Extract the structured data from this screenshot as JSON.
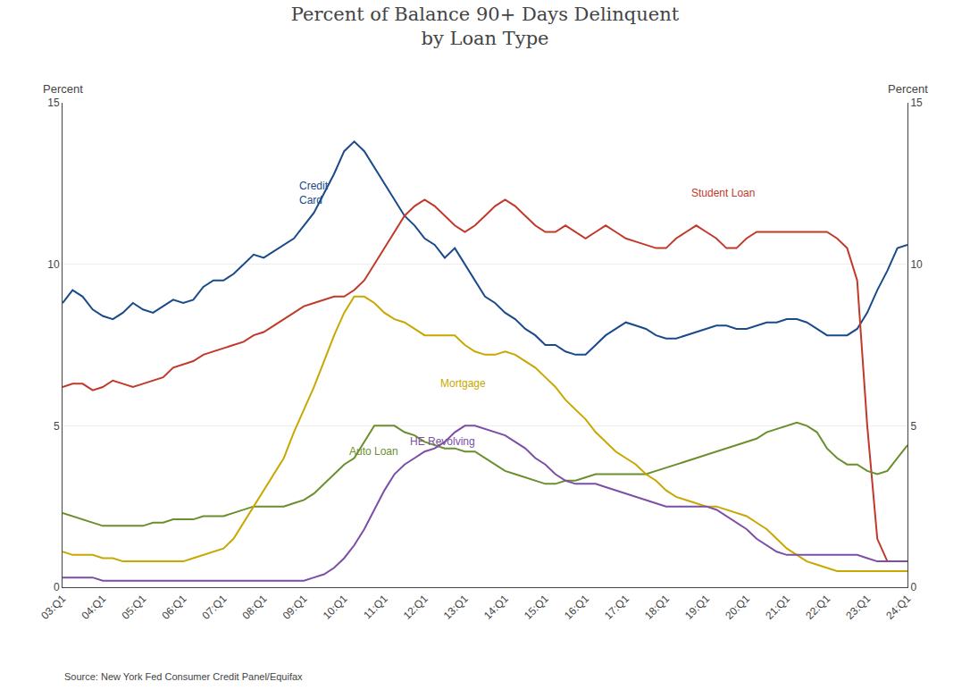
{
  "chart_data": {
    "type": "line",
    "title": "Percent of Balance 90+ Days Delinquent\nby Loan Type",
    "ylabel": "Percent",
    "y2label": "Percent",
    "source": "Source: New York Fed Consumer Credit Panel/Equifax",
    "grid": true,
    "ylim": [
      0,
      15
    ],
    "yticks": [
      0,
      5,
      10,
      15
    ],
    "y2lim": [
      0,
      15
    ],
    "y2ticks": [
      0,
      5,
      10,
      15
    ],
    "categories": [
      "03:Q1",
      null,
      null,
      null,
      "04:Q1",
      null,
      null,
      null,
      "05:Q1",
      null,
      null,
      null,
      "06:Q1",
      null,
      null,
      null,
      "07:Q1",
      null,
      null,
      null,
      "08:Q1",
      null,
      null,
      null,
      "09:Q1",
      null,
      null,
      null,
      "10:Q1",
      null,
      null,
      null,
      "11:Q1",
      null,
      null,
      null,
      "12:Q1",
      null,
      null,
      null,
      "13:Q1",
      null,
      null,
      null,
      "14:Q1",
      null,
      null,
      null,
      "15:Q1",
      null,
      null,
      null,
      "16:Q1",
      null,
      null,
      null,
      "17:Q1",
      null,
      null,
      null,
      "18:Q1",
      null,
      null,
      null,
      "19:Q1",
      null,
      null,
      null,
      "20:Q1",
      null,
      null,
      null,
      "21:Q1",
      null,
      null,
      null,
      "22:Q1",
      null,
      null,
      null,
      "23:Q1",
      null,
      null,
      null,
      "24:Q1"
    ],
    "series": [
      {
        "name": "Credit\nCard",
        "color": "#1a4a8a",
        "values": [
          8.8,
          9.2,
          9.0,
          8.6,
          8.4,
          8.3,
          8.5,
          8.8,
          8.6,
          8.5,
          8.7,
          8.9,
          8.8,
          8.9,
          9.3,
          9.5,
          9.5,
          9.7,
          10.0,
          10.3,
          10.2,
          10.4,
          10.6,
          10.8,
          11.2,
          11.6,
          12.2,
          12.8,
          13.5,
          13.8,
          13.5,
          13.0,
          12.5,
          12.0,
          11.5,
          11.2,
          10.8,
          10.6,
          10.2,
          10.5,
          10.0,
          9.5,
          9.0,
          8.8,
          8.5,
          8.3,
          8.0,
          7.8,
          7.5,
          7.5,
          7.3,
          7.2,
          7.2,
          7.5,
          7.8,
          8.0,
          8.2,
          8.1,
          8.0,
          7.8,
          7.7,
          7.7,
          7.8,
          7.9,
          8.0,
          8.1,
          8.1,
          8.0,
          8.0,
          8.1,
          8.2,
          8.2,
          8.3,
          8.3,
          8.2,
          8.0,
          7.8,
          7.8,
          7.8,
          8.0,
          8.5,
          9.2,
          9.8,
          10.5,
          10.6
        ]
      },
      {
        "name": "Student Loan",
        "color": "#c0392b",
        "values": [
          6.2,
          6.3,
          6.3,
          6.1,
          6.2,
          6.4,
          6.3,
          6.2,
          6.3,
          6.4,
          6.5,
          6.8,
          6.9,
          7.0,
          7.2,
          7.3,
          7.4,
          7.5,
          7.6,
          7.8,
          7.9,
          8.1,
          8.3,
          8.5,
          8.7,
          8.8,
          8.9,
          9.0,
          9.0,
          9.2,
          9.5,
          10.0,
          10.5,
          11.0,
          11.5,
          11.8,
          12.0,
          11.8,
          11.5,
          11.2,
          11.0,
          11.2,
          11.5,
          11.8,
          12.0,
          11.8,
          11.5,
          11.2,
          11.0,
          11.0,
          11.2,
          11.0,
          10.8,
          11.0,
          11.2,
          11.0,
          10.8,
          10.7,
          10.6,
          10.5,
          10.5,
          10.8,
          11.0,
          11.2,
          11.0,
          10.8,
          10.5,
          10.5,
          10.8,
          11.0,
          11.0,
          11.0,
          11.0,
          11.0,
          11.0,
          11.0,
          11.0,
          10.8,
          10.5,
          9.5,
          5.0,
          1.5,
          0.8,
          0.8,
          0.8
        ]
      },
      {
        "name": "Auto Loan",
        "color": "#6a8f2e",
        "values": [
          2.3,
          2.2,
          2.1,
          2.0,
          1.9,
          1.9,
          1.9,
          1.9,
          1.9,
          2.0,
          2.0,
          2.1,
          2.1,
          2.1,
          2.2,
          2.2,
          2.2,
          2.3,
          2.4,
          2.5,
          2.5,
          2.5,
          2.5,
          2.6,
          2.7,
          2.9,
          3.2,
          3.5,
          3.8,
          4.0,
          4.5,
          5.0,
          5.0,
          5.0,
          4.8,
          4.7,
          4.5,
          4.4,
          4.3,
          4.3,
          4.2,
          4.2,
          4.0,
          3.8,
          3.6,
          3.5,
          3.4,
          3.3,
          3.2,
          3.2,
          3.3,
          3.3,
          3.4,
          3.5,
          3.5,
          3.5,
          3.5,
          3.5,
          3.5,
          3.6,
          3.7,
          3.8,
          3.9,
          4.0,
          4.1,
          4.2,
          4.3,
          4.4,
          4.5,
          4.6,
          4.8,
          4.9,
          5.0,
          5.1,
          5.0,
          4.8,
          4.3,
          4.0,
          3.8,
          3.8,
          3.6,
          3.5,
          3.6,
          4.0,
          4.4
        ]
      },
      {
        "name": "Mortgage",
        "color": "#c8a800",
        "values": [
          1.1,
          1.0,
          1.0,
          1.0,
          0.9,
          0.9,
          0.8,
          0.8,
          0.8,
          0.8,
          0.8,
          0.8,
          0.8,
          0.9,
          1.0,
          1.1,
          1.2,
          1.5,
          2.0,
          2.5,
          3.0,
          3.5,
          4.0,
          4.8,
          5.5,
          6.2,
          7.0,
          7.8,
          8.5,
          9.0,
          9.0,
          8.8,
          8.5,
          8.3,
          8.2,
          8.0,
          7.8,
          7.8,
          7.8,
          7.8,
          7.5,
          7.3,
          7.2,
          7.2,
          7.3,
          7.2,
          7.0,
          6.8,
          6.5,
          6.2,
          5.8,
          5.5,
          5.2,
          4.8,
          4.5,
          4.2,
          4.0,
          3.8,
          3.5,
          3.3,
          3.0,
          2.8,
          2.7,
          2.6,
          2.5,
          2.5,
          2.4,
          2.3,
          2.2,
          2.0,
          1.8,
          1.5,
          1.2,
          1.0,
          0.8,
          0.7,
          0.6,
          0.5,
          0.5,
          0.5,
          0.5,
          0.5,
          0.5,
          0.5,
          0.5
        ]
      },
      {
        "name": "HE Revolving",
        "color": "#7b4fa6",
        "values": [
          0.3,
          0.3,
          0.3,
          0.3,
          0.2,
          0.2,
          0.2,
          0.2,
          0.2,
          0.2,
          0.2,
          0.2,
          0.2,
          0.2,
          0.2,
          0.2,
          0.2,
          0.2,
          0.2,
          0.2,
          0.2,
          0.2,
          0.2,
          0.2,
          0.2,
          0.3,
          0.4,
          0.6,
          0.9,
          1.3,
          1.8,
          2.4,
          3.0,
          3.5,
          3.8,
          4.0,
          4.2,
          4.3,
          4.5,
          4.8,
          5.0,
          5.0,
          4.9,
          4.8,
          4.7,
          4.5,
          4.3,
          4.0,
          3.8,
          3.5,
          3.3,
          3.2,
          3.2,
          3.2,
          3.1,
          3.0,
          2.9,
          2.8,
          2.7,
          2.6,
          2.5,
          2.5,
          2.5,
          2.5,
          2.5,
          2.4,
          2.2,
          2.0,
          1.8,
          1.5,
          1.3,
          1.1,
          1.0,
          1.0,
          1.0,
          1.0,
          1.0,
          1.0,
          1.0,
          1.0,
          0.9,
          0.8,
          0.8,
          0.8,
          0.8
        ]
      }
    ],
    "annotations": [
      {
        "text": "Credit\nCard",
        "x": 23,
        "y": 12.2,
        "color": "#1a4a8a"
      },
      {
        "text": "Student Loan",
        "x": 62,
        "y": 12.2,
        "color": "#c0392b"
      },
      {
        "text": "Auto Loan",
        "x": 28,
        "y": 4.2,
        "color": "#6a8f2e"
      },
      {
        "text": "Mortgage",
        "x": 37,
        "y": 6.3,
        "color": "#c8a800"
      },
      {
        "text": "HE Revolving",
        "x": 34,
        "y": 4.5,
        "color": "#7b4fa6"
      }
    ]
  }
}
